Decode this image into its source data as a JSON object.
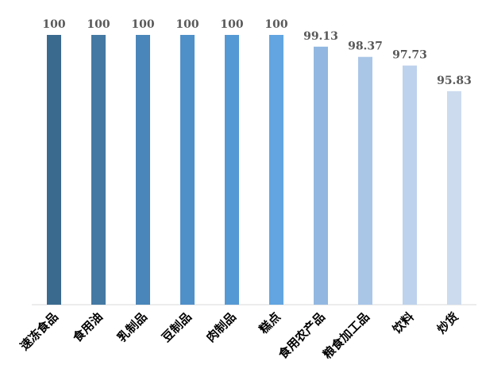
{
  "chart_data": {
    "type": "bar",
    "title": "",
    "xlabel": "",
    "ylabel": "",
    "categories": [
      "速冻食品",
      "食用油",
      "乳制品",
      "豆制品",
      "肉制品",
      "糕点",
      "食用农产品",
      "粮食加工品",
      "饮料",
      "炒货"
    ],
    "values": [
      100,
      100,
      100,
      100,
      100,
      100,
      99.13,
      98.37,
      97.73,
      95.83
    ],
    "value_labels": [
      "100",
      "100",
      "100",
      "100",
      "100",
      "100",
      "99.13",
      "98.37",
      "97.73",
      "95.83"
    ],
    "ylim": [
      80,
      100
    ],
    "grid": false,
    "legend": "none",
    "bar_colors": [
      "#3b6a8f",
      "#4479a3",
      "#4a86b9",
      "#4f90c8",
      "#5599d4",
      "#62a5e0",
      "#92b8e1",
      "#a9c6e7",
      "#bdd2ec",
      "#cddbee"
    ],
    "axis_color": "#d9d9d9"
  }
}
